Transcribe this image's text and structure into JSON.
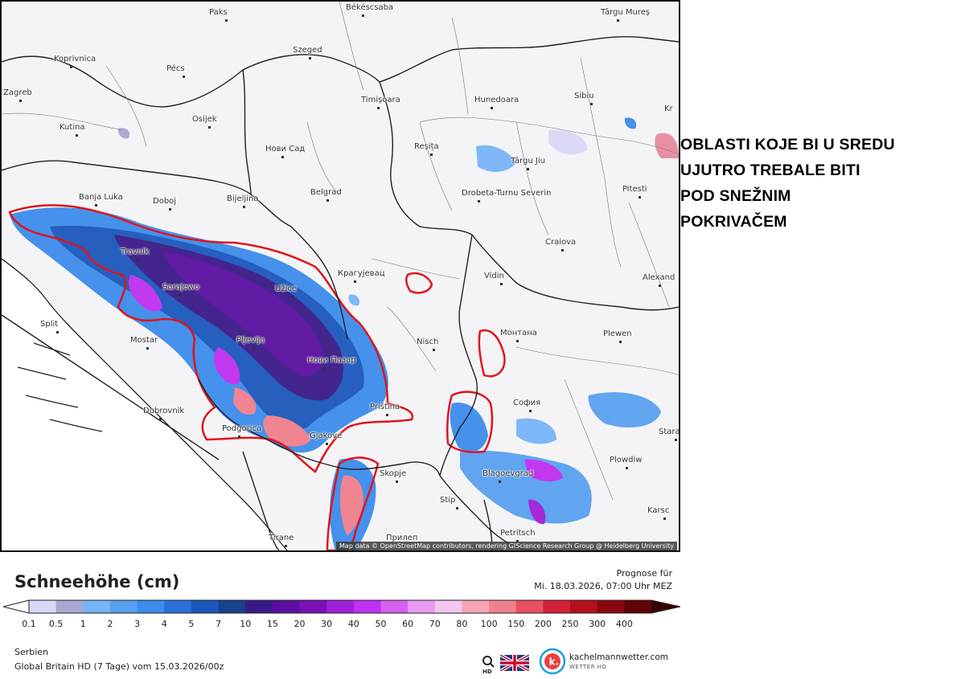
{
  "map": {
    "attribution": "Map data © OpenStreetMap contributors, rendering GIScience Research Group @ Heidelberg University",
    "cities": [
      {
        "name": "Paks",
        "key": "paks"
      },
      {
        "name": "Békéscsaba",
        "key": "bekescsaba"
      },
      {
        "name": "Târgu Mureș",
        "key": "targu-mures"
      },
      {
        "name": "Koprivnica",
        "key": "koprivnica"
      },
      {
        "name": "Pécs",
        "key": "pecs"
      },
      {
        "name": "Szeged",
        "key": "szeged"
      },
      {
        "name": "Zagreb",
        "key": "zagreb"
      },
      {
        "name": "Timișoara",
        "key": "timisoara"
      },
      {
        "name": "Hunedoara",
        "key": "hunedoara"
      },
      {
        "name": "Sibiu",
        "key": "sibiu"
      },
      {
        "name": "Kr",
        "key": "kr"
      },
      {
        "name": "Osijek",
        "key": "osijek"
      },
      {
        "name": "Kutina",
        "key": "kutina"
      },
      {
        "name": "Нови Сад",
        "key": "novi-sad"
      },
      {
        "name": "Reșița",
        "key": "resita"
      },
      {
        "name": "Târgu Jiu",
        "key": "targu-jiu"
      },
      {
        "name": "Pitesti",
        "key": "pitesti"
      },
      {
        "name": "Banja Luka",
        "key": "banja-luka"
      },
      {
        "name": "Doboj",
        "key": "doboj"
      },
      {
        "name": "Bijeljina",
        "key": "bijeljina"
      },
      {
        "name": "Belgrad",
        "key": "belgrad"
      },
      {
        "name": "Drobeta-Turnu Severin",
        "key": "drobeta"
      },
      {
        "name": "Craiova",
        "key": "craiova"
      },
      {
        "name": "Travnik",
        "key": "travnik"
      },
      {
        "name": "Sarajewo",
        "key": "sarajewo"
      },
      {
        "name": "Užice",
        "key": "uzice"
      },
      {
        "name": "Крагујевац",
        "key": "kragujevac"
      },
      {
        "name": "Vidin",
        "key": "vidin"
      },
      {
        "name": "Alexand",
        "key": "alexand"
      },
      {
        "name": "Split",
        "key": "split"
      },
      {
        "name": "Mostar",
        "key": "mostar"
      },
      {
        "name": "Pljevlja",
        "key": "pljevlja"
      },
      {
        "name": "Нови Пазар",
        "key": "novi-pazar"
      },
      {
        "name": "Nisch",
        "key": "nisch"
      },
      {
        "name": "Монтана",
        "key": "montana"
      },
      {
        "name": "Plewen",
        "key": "plewen"
      },
      {
        "name": "Dubrovnik",
        "key": "dubrovnik"
      },
      {
        "name": "Priština",
        "key": "pristina"
      },
      {
        "name": "София",
        "key": "sofia"
      },
      {
        "name": "Stara",
        "key": "stara"
      },
      {
        "name": "Podgorica",
        "key": "podgorica"
      },
      {
        "name": "Gjakove",
        "key": "gjakove"
      },
      {
        "name": "Skopje",
        "key": "skopje"
      },
      {
        "name": "Blagoevgrad",
        "key": "blagoevgrad"
      },
      {
        "name": "Plowdiw",
        "key": "plowdiw"
      },
      {
        "name": "Stip",
        "key": "stip"
      },
      {
        "name": "Karsc",
        "key": "karsc"
      },
      {
        "name": "Tirane",
        "key": "tirane"
      },
      {
        "name": "Прилеп",
        "key": "prilep"
      },
      {
        "name": "Petritsch",
        "key": "petritsch"
      }
    ]
  },
  "annotation": {
    "lines": [
      "OBLASTI KOJE BI U SREDU",
      "UJUTRO TREBALE BITI",
      "POD SNEŽNIM",
      "POKRIVAČEM"
    ],
    "outline_color": "#e0141c"
  },
  "legend": {
    "title": "Schneehöhe (cm)",
    "forecast_label": "Prognose für",
    "forecast_date": "Mi. 18.03.2026, 07:00 Uhr MEZ",
    "ticks": [
      "0.1",
      "0.5",
      "1",
      "2",
      "3",
      "4",
      "5",
      "7",
      "10",
      "15",
      "20",
      "30",
      "40",
      "50",
      "60",
      "70",
      "80",
      "100",
      "150",
      "200",
      "250",
      "300",
      "400"
    ],
    "colors": [
      "#d8d8f8",
      "#a8a8d0",
      "#78b4f8",
      "#5aa0f0",
      "#3c8cec",
      "#2a70d8",
      "#1c58bc",
      "#18428c",
      "#3a1a88",
      "#5a0fa0",
      "#7a10b8",
      "#a020d8",
      "#c030f0",
      "#d860f0",
      "#e89af0",
      "#f0c8f0",
      "#f4a4b4",
      "#f0808c",
      "#e85060",
      "#d42038",
      "#b4101c",
      "#8c0810",
      "#600408"
    ]
  },
  "footer": {
    "region": "Serbien",
    "model": "Global Britain HD (7 Tage) vom 15.03.2026/00z",
    "brand_name": "kachelmannwetter.com",
    "brand_sub": "WETTER HD",
    "brand_color": "#1aa0d8"
  }
}
